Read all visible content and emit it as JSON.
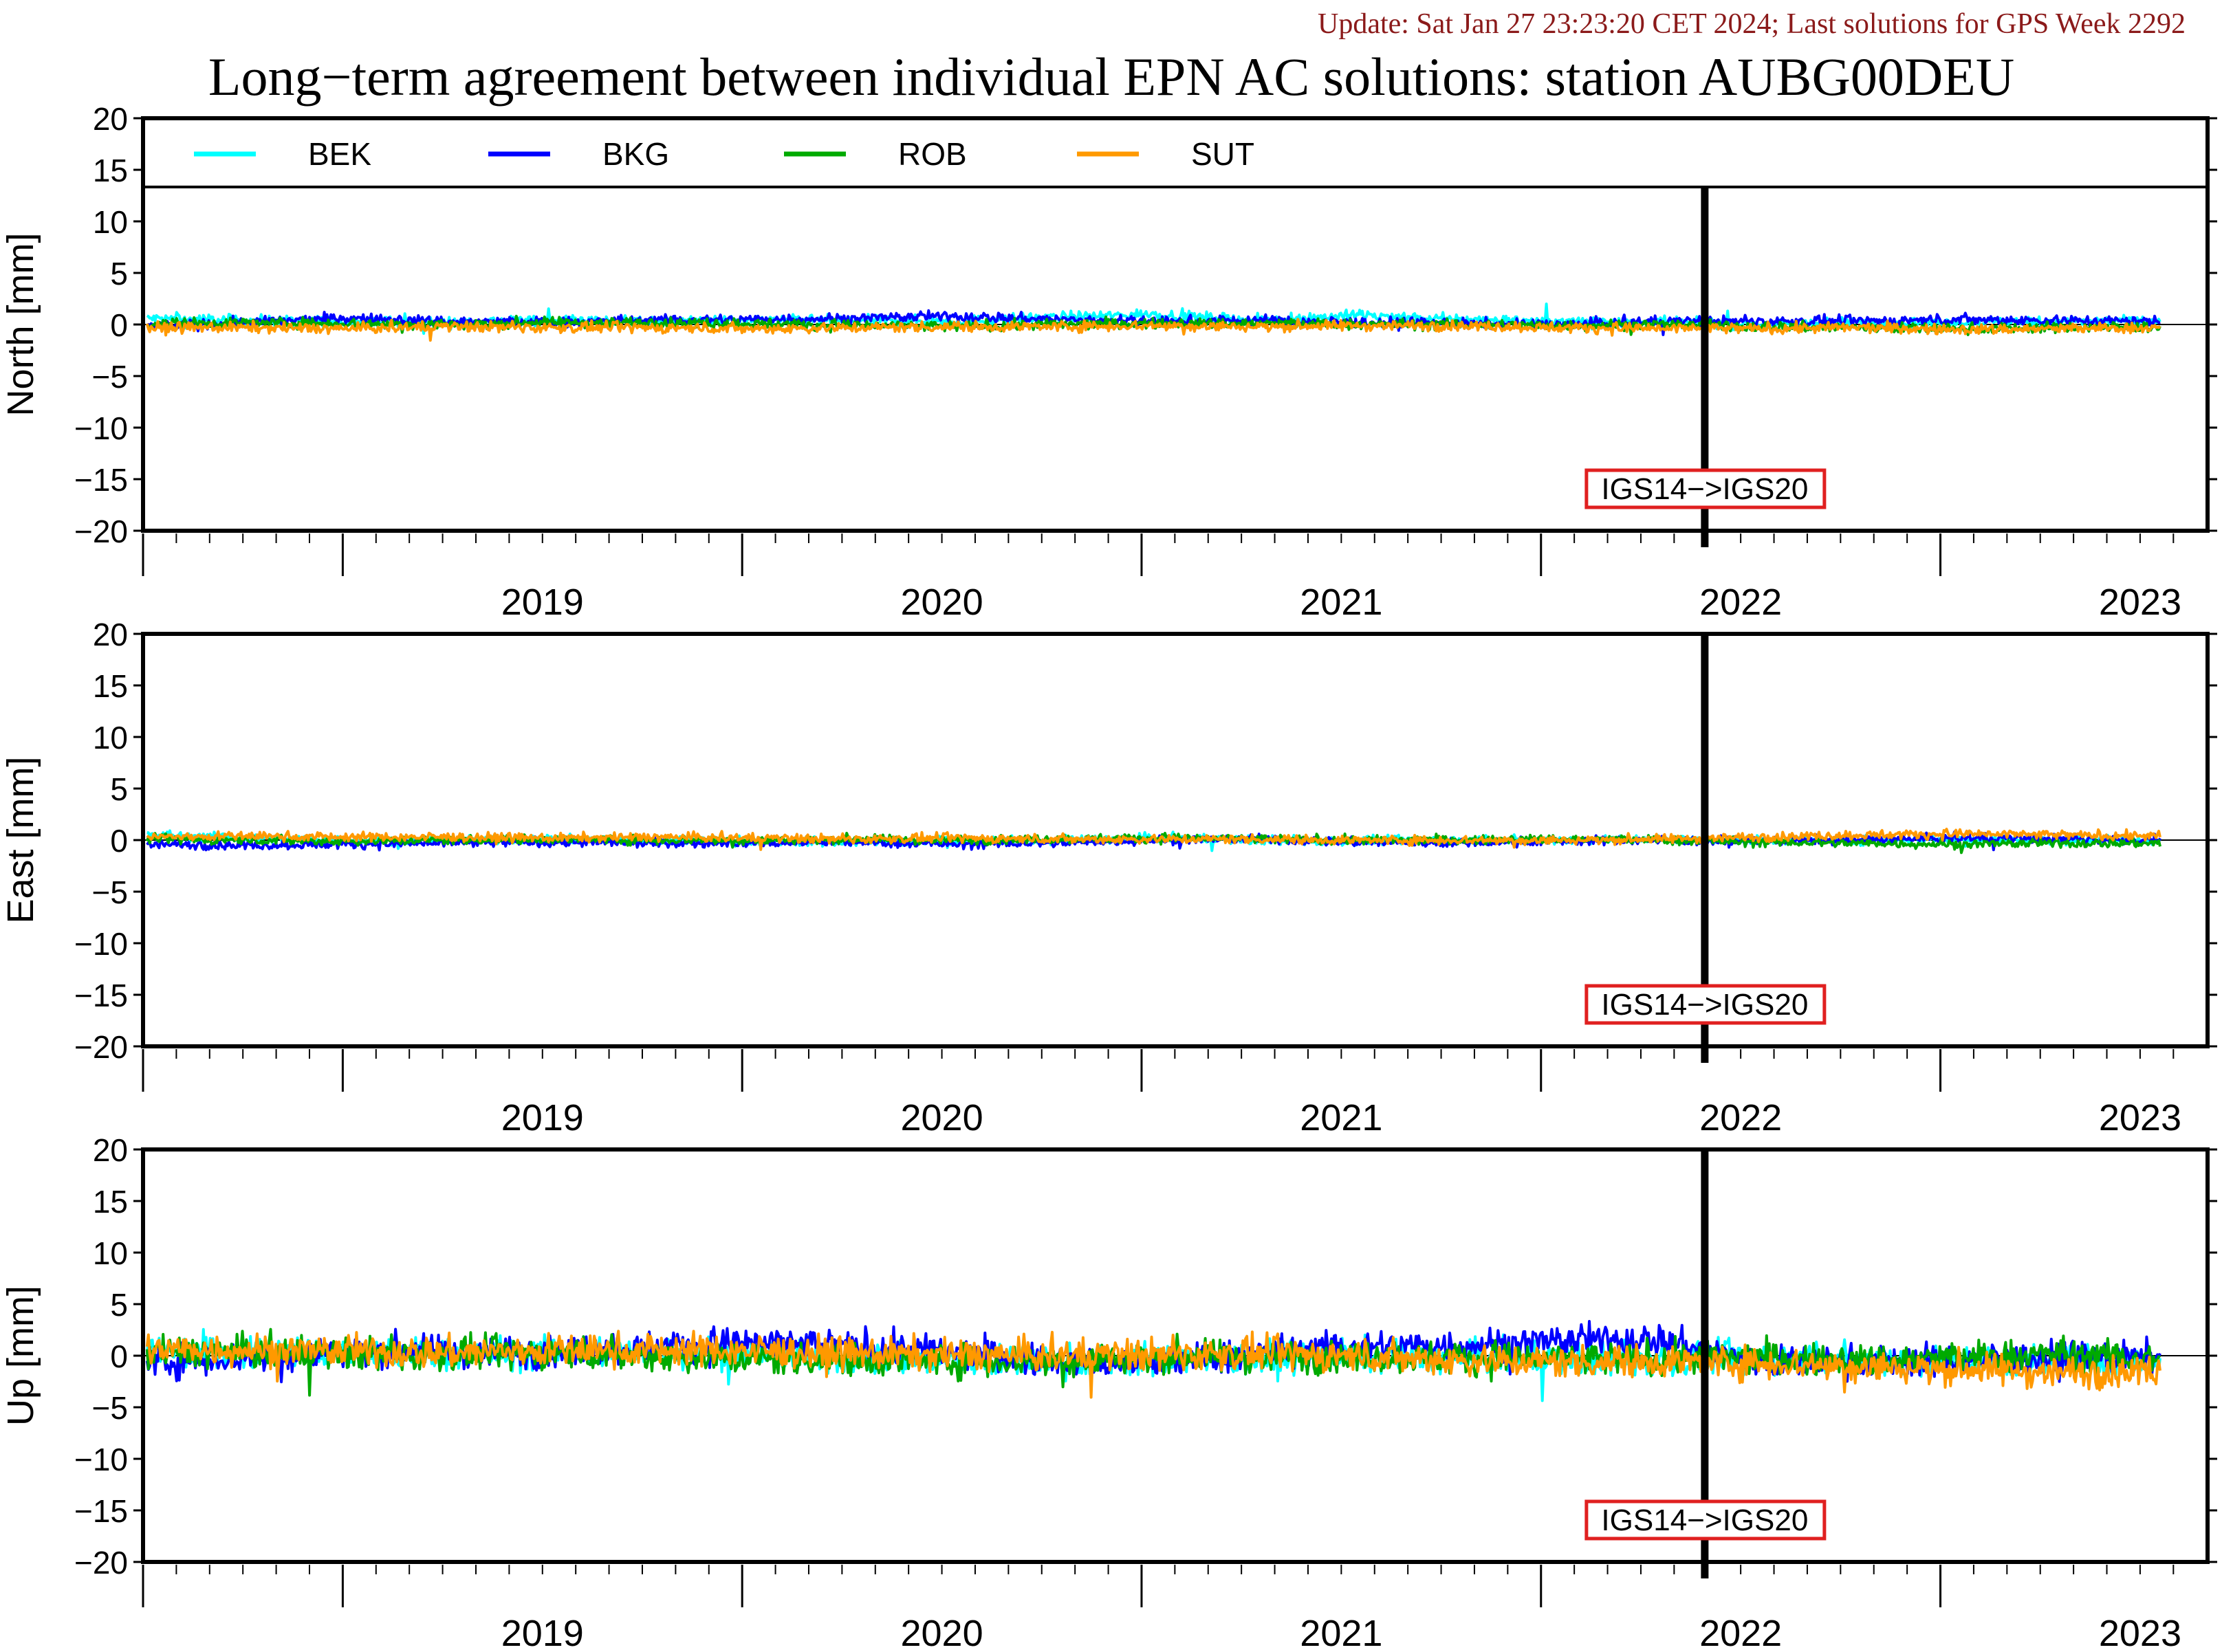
{
  "update_text": "Update: Sat Jan 27 23:23:20 CET 2024; Last solutions for GPS Week 2292",
  "title": "Long−term agreement between individual EPN AC solutions: station AUBG00DEU",
  "colors": {
    "update": "#8b1a1a",
    "axis": "#000000",
    "marker_box": "#e02020",
    "marker_line": "#000000"
  },
  "legend": [
    {
      "name": "BEK",
      "color": "#00ffff"
    },
    {
      "name": "BKG",
      "color": "#0000ff"
    },
    {
      "name": "ROB",
      "color": "#00aa00"
    },
    {
      "name": "SUT",
      "color": "#ff9900"
    }
  ],
  "chart_data": {
    "type": "line",
    "x_start": 2018.5,
    "x_end": 2023.6,
    "x_tick_labels": [
      "2019",
      "2020",
      "2021",
      "2022",
      "2023"
    ],
    "reference_line": {
      "x": 2022.41,
      "label": "IGS14−>IGS20"
    },
    "panels": [
      {
        "ylabel": "North [mm]",
        "ylim": [
          -20,
          20
        ],
        "yticks": [
          "20",
          "15",
          "10",
          "5",
          "0",
          "−5",
          "−10",
          "−15",
          "−20"
        ],
        "has_legend": true,
        "series": [
          {
            "name": "BEK",
            "values": [
              0.6,
              0.4,
              0.3,
              0.2,
              0.5,
              0.3,
              0.4,
              0.4,
              0.3,
              0.7,
              1.0,
              0.4,
              0.9,
              0.5,
              0.3,
              0.2,
              0.0,
              0.2,
              0.2,
              0.3,
              0.3
            ]
          },
          {
            "name": "BKG",
            "values": [
              -0.2,
              0.2,
              0.6,
              0.3,
              0.2,
              0.4,
              0.5,
              0.6,
              0.8,
              0.5,
              0.3,
              0.4,
              0.2,
              0.1,
              0.0,
              0.3,
              0.3,
              0.3,
              0.5,
              0.4,
              0.3
            ]
          },
          {
            "name": "ROB",
            "values": [
              0.1,
              0.2,
              0.1,
              0.0,
              0.2,
              0.2,
              0.1,
              -0.1,
              -0.2,
              0.0,
              0.1,
              0.1,
              0.0,
              0.0,
              -0.1,
              0.0,
              -0.2,
              -0.3,
              -0.4,
              -0.3,
              -0.2
            ]
          },
          {
            "name": "SUT",
            "values": [
              -0.3,
              -0.3,
              -0.4,
              -0.2,
              -0.3,
              -0.3,
              -0.4,
              -0.3,
              -0.2,
              -0.2,
              -0.1,
              -0.2,
              -0.1,
              -0.1,
              -0.3,
              -0.4,
              -0.4,
              -0.3,
              -0.5,
              -0.4,
              -0.3
            ]
          }
        ]
      },
      {
        "ylabel": "East [mm]",
        "ylim": [
          -20,
          20
        ],
        "yticks": [
          "20",
          "15",
          "10",
          "5",
          "0",
          "−5",
          "−10",
          "−15",
          "−20"
        ],
        "has_legend": false,
        "series": [
          {
            "name": "BEK",
            "values": [
              0.5,
              0.2,
              0.0,
              0.0,
              0.1,
              0.0,
              -0.1,
              -0.2,
              -0.1,
              0.0,
              0.2,
              0.0,
              -0.1,
              0.0,
              0.0,
              0.1,
              0.0,
              0.0,
              0.1,
              0.0,
              0.0
            ]
          },
          {
            "name": "BKG",
            "values": [
              -0.4,
              -0.5,
              -0.4,
              -0.3,
              -0.2,
              -0.3,
              -0.3,
              -0.2,
              -0.4,
              -0.3,
              0.0,
              0.1,
              -0.2,
              -0.3,
              -0.1,
              0.0,
              -0.1,
              0.0,
              0.2,
              0.1,
              0.0
            ]
          },
          {
            "name": "ROB",
            "values": [
              0.1,
              0.0,
              -0.1,
              0.0,
              0.1,
              0.0,
              0.0,
              0.1,
              0.0,
              0.1,
              0.2,
              0.1,
              0.0,
              0.0,
              0.1,
              0.0,
              -0.2,
              -0.3,
              -0.4,
              -0.3,
              -0.3
            ]
          },
          {
            "name": "SUT",
            "values": [
              0.3,
              0.4,
              0.3,
              0.3,
              0.2,
              0.3,
              0.2,
              0.1,
              0.2,
              0.1,
              0.1,
              0.1,
              0.0,
              0.0,
              0.0,
              0.1,
              0.3,
              0.5,
              0.6,
              0.5,
              0.4
            ]
          }
        ]
      },
      {
        "ylabel": "Up [mm]",
        "ylim": [
          -20,
          20
        ],
        "yticks": [
          "20",
          "15",
          "10",
          "5",
          "0",
          "−5",
          "−10",
          "−15",
          "−20"
        ],
        "has_legend": false,
        "series": [
          {
            "name": "BEK",
            "values": [
              0.5,
              0.3,
              0.2,
              0.1,
              0.3,
              0.4,
              0.2,
              -0.3,
              -0.5,
              -0.6,
              -0.4,
              -0.2,
              0.0,
              -0.2,
              -0.3,
              -0.4,
              -0.2,
              -0.4,
              -0.5,
              -0.5,
              -0.6
            ]
          },
          {
            "name": "BKG",
            "values": [
              -0.6,
              -0.2,
              0.5,
              0.4,
              0.4,
              0.8,
              1.2,
              0.9,
              0.3,
              -0.5,
              -0.8,
              0.2,
              0.9,
              1.0,
              1.4,
              1.6,
              -0.6,
              -0.6,
              -0.4,
              -0.2,
              -0.2
            ]
          },
          {
            "name": "ROB",
            "values": [
              0.4,
              0.3,
              0.2,
              0.1,
              0.3,
              0.0,
              -0.3,
              -0.4,
              -0.5,
              -0.5,
              0.0,
              -0.1,
              -0.1,
              -0.2,
              -0.4,
              -0.3,
              -0.2,
              -0.5,
              -0.2,
              0.2,
              -0.4
            ]
          },
          {
            "name": "SUT",
            "values": [
              0.6,
              0.6,
              0.4,
              0.3,
              0.5,
              0.6,
              0.5,
              0.2,
              0.1,
              0.0,
              0.1,
              0.2,
              0.0,
              -0.4,
              -0.6,
              -0.5,
              -0.7,
              -1.0,
              -1.3,
              -1.6,
              -1.4
            ]
          }
        ]
      }
    ]
  }
}
